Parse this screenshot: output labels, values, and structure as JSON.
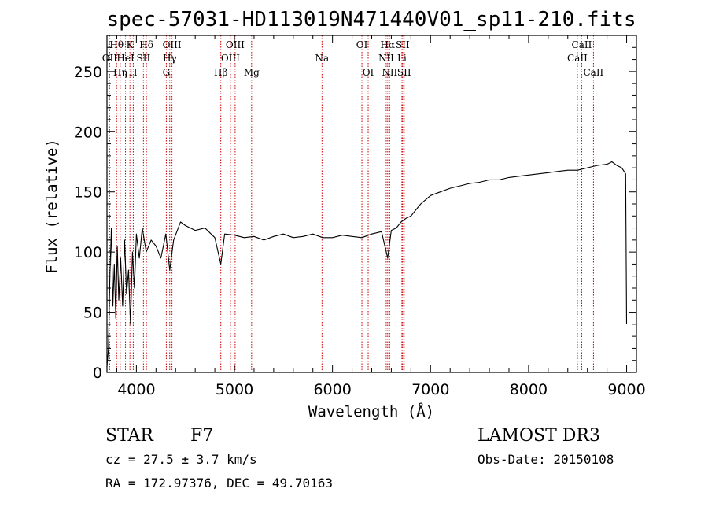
{
  "chart_data": {
    "type": "line",
    "title": "spec-57031-HD113019N471440V01_sp11-210.fits",
    "xlabel": "Wavelength (Å)",
    "ylabel": "Flux (relative)",
    "xlim": [
      3700,
      9100
    ],
    "ylim": [
      0,
      280
    ],
    "x_ticks": [
      4000,
      5000,
      6000,
      7000,
      8000,
      9000
    ],
    "y_ticks": [
      0,
      50,
      100,
      150,
      200,
      250
    ],
    "grid": false,
    "series": [
      {
        "x": [
          3700,
          3715,
          3730,
          3745,
          3760,
          3775,
          3790,
          3805,
          3820,
          3840,
          3860,
          3880,
          3900,
          3920,
          3940,
          3960,
          3980,
          4000,
          4030,
          4060,
          4100,
          4150,
          4200,
          4250,
          4300,
          4340,
          4380,
          4450,
          4500,
          4600,
          4700,
          4800,
          4861,
          4900,
          5000,
          5100,
          5200,
          5300,
          5400,
          5500,
          5600,
          5700,
          5800,
          5900,
          6000,
          6100,
          6200,
          6300,
          6400,
          6500,
          6563,
          6600,
          6650,
          6700,
          6750,
          6800,
          6850,
          6900,
          7000,
          7100,
          7200,
          7300,
          7400,
          7500,
          7600,
          7700,
          7800,
          7900,
          8000,
          8100,
          8200,
          8300,
          8400,
          8500,
          8600,
          8700,
          8800,
          8850,
          8900,
          8950,
          8990,
          9000
        ],
        "y": [
          5,
          20,
          80,
          120,
          55,
          90,
          45,
          105,
          60,
          95,
          55,
          110,
          65,
          85,
          40,
          100,
          70,
          115,
          95,
          120,
          100,
          110,
          105,
          95,
          115,
          85,
          110,
          125,
          122,
          118,
          120,
          112,
          90,
          115,
          114,
          112,
          113,
          110,
          113,
          115,
          112,
          113,
          115,
          112,
          112,
          114,
          113,
          112,
          115,
          117,
          95,
          118,
          120,
          125,
          128,
          130,
          135,
          140,
          147,
          150,
          153,
          155,
          157,
          158,
          160,
          160,
          162,
          163,
          164,
          165,
          166,
          167,
          168,
          168,
          170,
          172,
          173,
          175,
          172,
          170,
          165,
          40
        ]
      }
    ],
    "spectral_lines": [
      {
        "label": "Hθ",
        "x": 3798,
        "row": 0
      },
      {
        "label": "K",
        "x": 3934,
        "row": 0
      },
      {
        "label": "Hδ",
        "x": 4102,
        "row": 0
      },
      {
        "label": "OIII",
        "x": 4363,
        "row": 0
      },
      {
        "label": "OIII",
        "x": 5007,
        "row": 0
      },
      {
        "label": "OI",
        "x": 6300,
        "row": 0
      },
      {
        "label": "Hα",
        "x": 6563,
        "row": 0
      },
      {
        "label": "SII",
        "x": 6716,
        "row": 0
      },
      {
        "label": "CaII",
        "x": 8542,
        "row": 0
      },
      {
        "label": "OII",
        "x": 3727,
        "row": 1
      },
      {
        "label": "HeI",
        "x": 3889,
        "row": 1
      },
      {
        "label": "SII",
        "x": 4072,
        "row": 1
      },
      {
        "label": "Hγ",
        "x": 4340,
        "row": 1
      },
      {
        "label": "OIII",
        "x": 4959,
        "row": 1
      },
      {
        "label": "Na",
        "x": 5893,
        "row": 1
      },
      {
        "label": "NII",
        "x": 6548,
        "row": 1
      },
      {
        "label": "Li",
        "x": 6708,
        "row": 1
      },
      {
        "label": "CaII",
        "x": 8498,
        "row": 1
      },
      {
        "label": "Hη",
        "x": 3835,
        "row": 2
      },
      {
        "label": "H",
        "x": 3968,
        "row": 2
      },
      {
        "label": "G",
        "x": 4305,
        "row": 2
      },
      {
        "label": "Hβ",
        "x": 4861,
        "row": 2
      },
      {
        "label": "Mg",
        "x": 5175,
        "row": 2
      },
      {
        "label": "OI",
        "x": 6364,
        "row": 2
      },
      {
        "label": "NII",
        "x": 6583,
        "row": 2
      },
      {
        "label": "SII",
        "x": 6731,
        "row": 2
      },
      {
        "label": "CaII",
        "x": 8662,
        "row": 2
      }
    ],
    "colors": {
      "line": "#000000",
      "marker": "#cc0000"
    }
  },
  "info": {
    "class_label": "STAR",
    "subclass": "F7",
    "survey": "LAMOST DR3",
    "cz": "cz = 27.5 ± 3.7 km/s",
    "obs_date": "Obs-Date: 20150108",
    "coords": "RA = 172.97376, DEC =  49.70163"
  }
}
